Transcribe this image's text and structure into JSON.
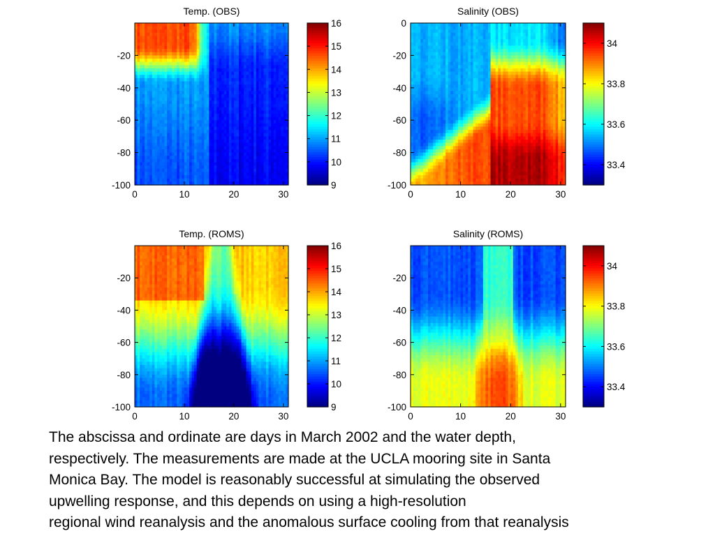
{
  "caption": {
    "lines": [
      "The abscissa and ordinate are days in March 2002 and the water depth,",
      "respectively. The measurements are made at the UCLA mooring site in Santa",
      "Monica Bay.  The model is reasonably successful at simulating the observed",
      "upwelling response, and this depends on using a high-resolution",
      "regional wind reanalysis and the anomalous surface cooling from that reanalysis"
    ]
  },
  "chart_data": [
    {
      "type": "heatmap",
      "title": "Temp. (OBS)",
      "x_ticks": [
        "0",
        "10",
        "20",
        "30"
      ],
      "y_ticks": [
        "-20",
        "-40",
        "-60",
        "-80",
        "-100"
      ],
      "xlim": [
        0,
        31
      ],
      "ylim": [
        -100,
        0
      ],
      "colorbar": {
        "ticks": [
          "16",
          "15",
          "14",
          "13",
          "12",
          "11",
          "10",
          "9"
        ],
        "range": [
          9,
          16
        ]
      },
      "grid": false
    },
    {
      "type": "heatmap",
      "title": "Salinity (OBS)",
      "x_ticks": [
        "0",
        "10",
        "20",
        "30"
      ],
      "y_ticks": [
        "0",
        "-20",
        "-40",
        "-60",
        "-80",
        "-100"
      ],
      "xlim": [
        0,
        31
      ],
      "ylim": [
        -100,
        0
      ],
      "colorbar": {
        "ticks": [
          "34",
          "33.8",
          "33.6",
          "33.4"
        ],
        "range": [
          33.3,
          34.1
        ]
      },
      "grid": false
    },
    {
      "type": "heatmap",
      "title": "Temp. (ROMS)",
      "x_ticks": [
        "0",
        "10",
        "20",
        "30"
      ],
      "y_ticks": [
        "-20",
        "-40",
        "-60",
        "-80",
        "-100"
      ],
      "xlim": [
        0,
        31
      ],
      "ylim": [
        -100,
        0
      ],
      "colorbar": {
        "ticks": [
          "16",
          "15",
          "14",
          "13",
          "12",
          "11",
          "10",
          "9"
        ],
        "range": [
          9,
          16
        ]
      },
      "grid": false
    },
    {
      "type": "heatmap",
      "title": "Salinity (ROMS)",
      "x_ticks": [
        "0",
        "10",
        "20",
        "30"
      ],
      "y_ticks": [
        "-20",
        "-40",
        "-60",
        "-80",
        "-100"
      ],
      "xlim": [
        0,
        31
      ],
      "ylim": [
        -100,
        0
      ],
      "colorbar": {
        "ticks": [
          "34",
          "33.8",
          "33.6",
          "33.4"
        ],
        "range": [
          33.3,
          34.1
        ]
      },
      "grid": false
    }
  ]
}
